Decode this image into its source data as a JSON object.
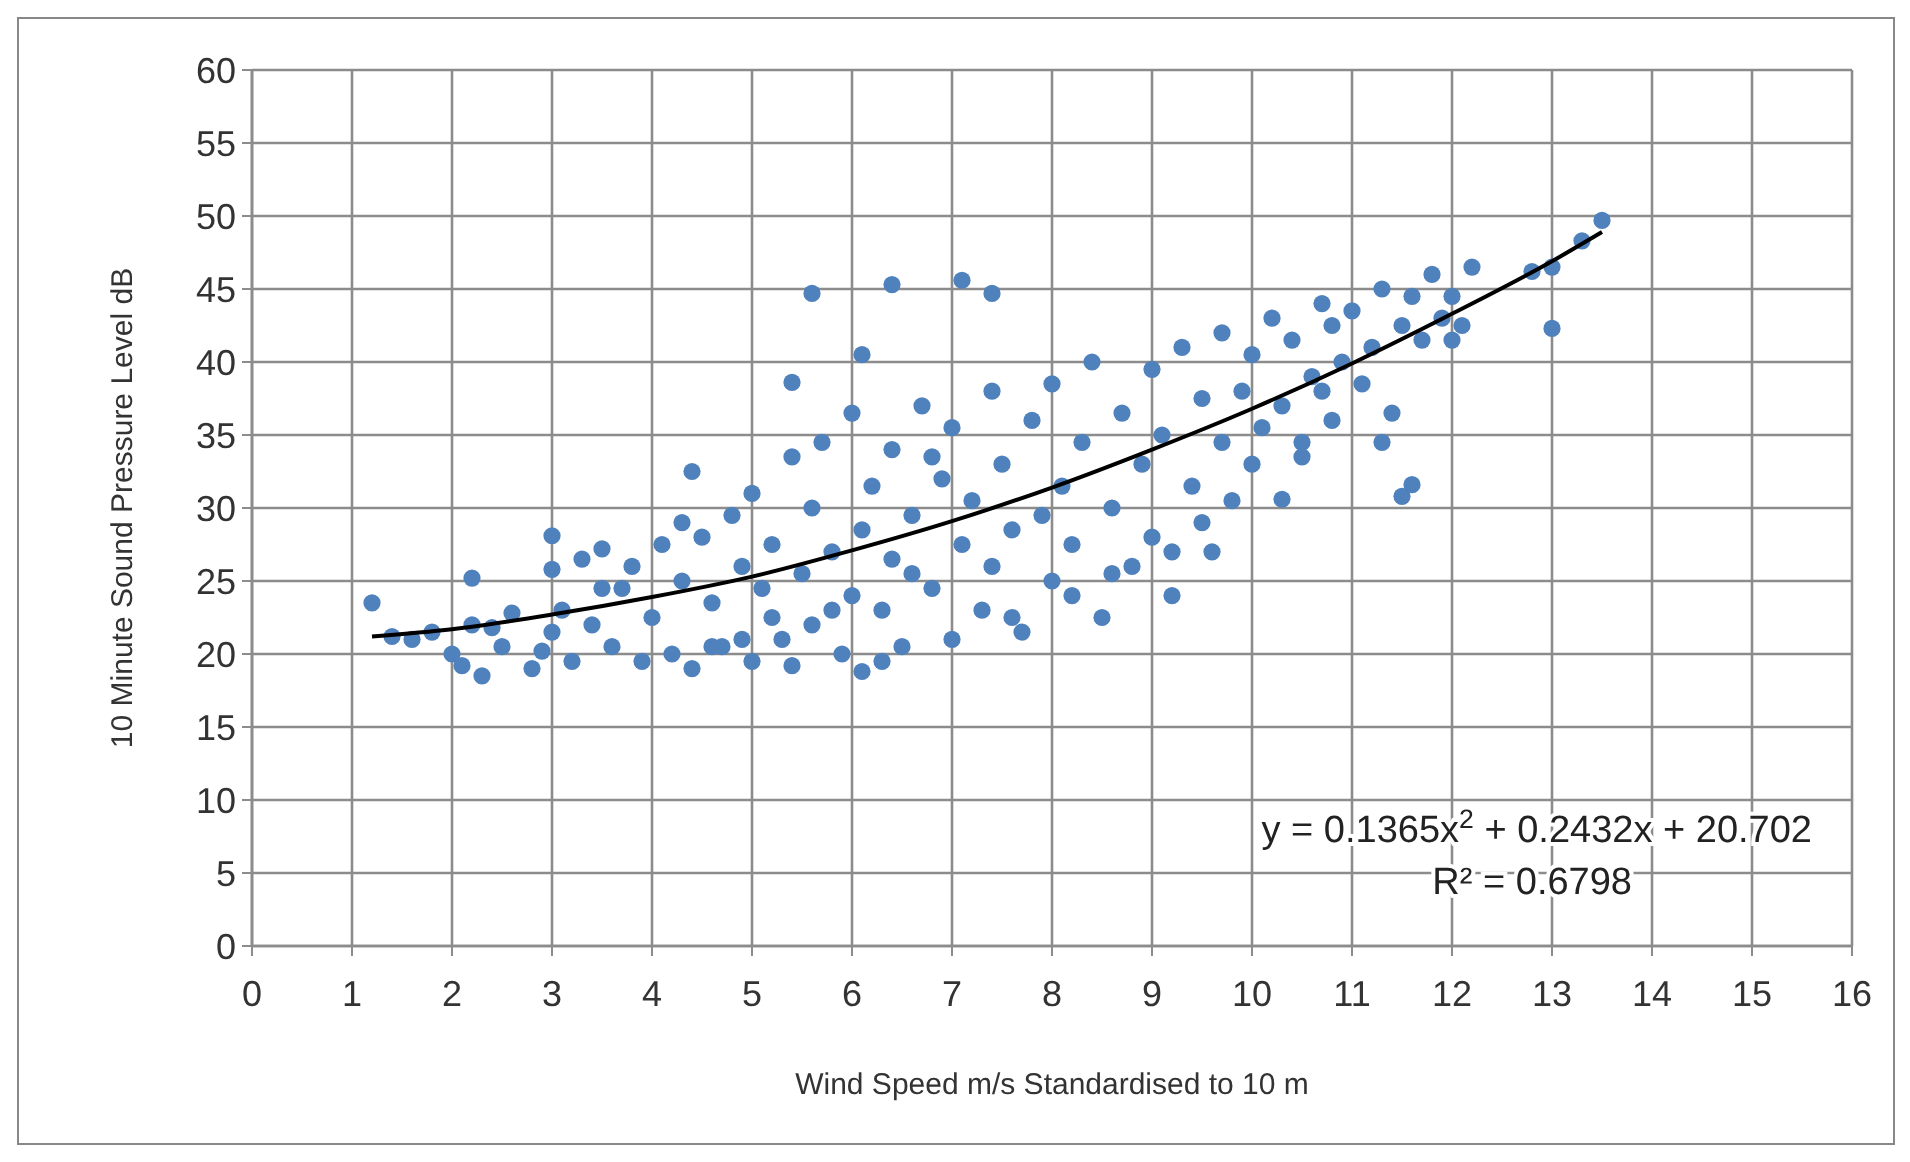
{
  "chart_data": {
    "type": "scatter",
    "xlabel": "Wind Speed m/s Standardised to 10 m",
    "ylabel": "10 Minute Sound Pressure Level dB",
    "xlim": [
      0,
      16
    ],
    "ylim": [
      0,
      60
    ],
    "xticks": [
      0,
      1,
      2,
      3,
      4,
      5,
      6,
      7,
      8,
      9,
      10,
      11,
      12,
      13,
      14,
      15,
      16
    ],
    "yticks": [
      0,
      5,
      10,
      15,
      20,
      25,
      30,
      35,
      40,
      45,
      50,
      55,
      60
    ],
    "grid": true,
    "marker": "circle",
    "annotations": [
      "y = 0.1365x$^{2}$ + 0.2432x + 20.702",
      "R² = 0.6798"
    ],
    "series": [
      {
        "color": "#4f81bd",
        "x": [
          1.2,
          1.4,
          1.6,
          1.8,
          2.0,
          2.1,
          2.2,
          2.3,
          2.4,
          2.5,
          2.6,
          2.8,
          2.9,
          3.0,
          3.0,
          3.1,
          3.2,
          3.3,
          3.4,
          3.5,
          3.6,
          3.7,
          3.8,
          3.9,
          4.0,
          4.1,
          4.2,
          4.3,
          4.4,
          4.4,
          4.5,
          4.6,
          4.7,
          4.8,
          4.9,
          5.0,
          5.0,
          5.1,
          5.2,
          5.3,
          5.4,
          5.4,
          5.5,
          5.6,
          5.6,
          5.7,
          5.8,
          5.9,
          6.0,
          6.0,
          6.1,
          6.1,
          6.2,
          6.3,
          6.4,
          6.4,
          6.5,
          6.6,
          6.7,
          6.8,
          6.9,
          7.0,
          7.0,
          7.1,
          7.2,
          7.3,
          7.4,
          7.4,
          7.5,
          7.6,
          7.7,
          7.8,
          7.9,
          8.0,
          8.0,
          8.1,
          8.2,
          8.3,
          8.4,
          8.5,
          8.6,
          8.7,
          8.8,
          8.9,
          9.0,
          9.0,
          9.1,
          9.2,
          9.3,
          9.4,
          9.5,
          9.6,
          9.7,
          9.7,
          9.8,
          9.9,
          10.0,
          10.0,
          10.1,
          10.2,
          10.3,
          10.3,
          10.4,
          10.5,
          10.6,
          10.7,
          10.8,
          10.8,
          10.9,
          11.0,
          11.1,
          11.2,
          11.3,
          11.4,
          11.5,
          11.5,
          11.6,
          11.6,
          11.7,
          11.8,
          11.9,
          12.0,
          12.1,
          12.2,
          12.8,
          13.0,
          13.0,
          13.3,
          13.5,
          2.2,
          3.0,
          5.6,
          6.4,
          7.1,
          7.4,
          6.1,
          5.4,
          4.3,
          6.8,
          8.6,
          9.5,
          10.5,
          3.5,
          4.6,
          5.2,
          6.3,
          7.6,
          8.2,
          9.2,
          10.7,
          11.3,
          12.0,
          4.9,
          5.8,
          6.6
        ],
        "values": [
          23.5,
          21.2,
          21.0,
          21.5,
          20.0,
          19.2,
          22.0,
          18.5,
          21.8,
          20.5,
          22.8,
          19.0,
          20.2,
          25.8,
          21.5,
          23.0,
          19.5,
          26.5,
          22.0,
          27.2,
          20.5,
          24.5,
          26.0,
          19.5,
          22.5,
          27.5,
          20.0,
          25.0,
          32.5,
          19.0,
          28.0,
          23.5,
          20.5,
          29.5,
          26.0,
          19.5,
          31.0,
          24.5,
          27.5,
          21.0,
          33.5,
          19.2,
          25.5,
          30.0,
          22.0,
          34.5,
          27.0,
          20.0,
          24.0,
          36.5,
          28.5,
          18.8,
          31.5,
          23.0,
          34.0,
          26.5,
          20.5,
          29.5,
          37.0,
          24.5,
          32.0,
          21.0,
          35.5,
          27.5,
          30.5,
          23.0,
          38.0,
          26.0,
          33.0,
          28.5,
          21.5,
          36.0,
          29.5,
          25.0,
          38.5,
          31.5,
          27.5,
          34.5,
          40.0,
          22.5,
          30.0,
          36.5,
          26.0,
          33.0,
          39.5,
          28.0,
          35.0,
          24.0,
          41.0,
          31.5,
          37.5,
          27.0,
          34.5,
          42.0,
          30.5,
          38.0,
          33.0,
          40.5,
          35.5,
          43.0,
          37.0,
          30.6,
          41.5,
          34.5,
          39.0,
          44.0,
          36.0,
          42.5,
          40.0,
          43.5,
          38.5,
          41.0,
          45.0,
          36.5,
          42.5,
          30.8,
          44.5,
          31.6,
          41.5,
          46.0,
          43.0,
          44.5,
          42.5,
          46.5,
          46.2,
          42.3,
          46.5,
          48.3,
          49.7,
          25.2,
          28.1,
          44.7,
          45.3,
          45.6,
          44.7,
          40.5,
          38.6,
          29.0,
          33.5,
          25.5,
          29.0,
          33.5,
          24.5,
          20.5,
          22.5,
          19.5,
          22.5,
          24.0,
          27.0,
          38.0,
          34.5,
          41.5,
          21.0,
          23.0,
          25.5
        ]
      },
      {
        "type": "line",
        "marker": "none",
        "color": "#000000",
        "x": [
          1.2,
          2,
          3,
          4,
          5,
          6,
          7,
          8,
          9,
          10,
          11,
          12,
          13,
          13.5
        ],
        "values": [
          21.2,
          21.7,
          22.7,
          23.9,
          25.3,
          27.1,
          29.1,
          31.4,
          34.0,
          36.8,
          39.9,
          43.3,
          46.9,
          48.9
        ]
      }
    ]
  }
}
